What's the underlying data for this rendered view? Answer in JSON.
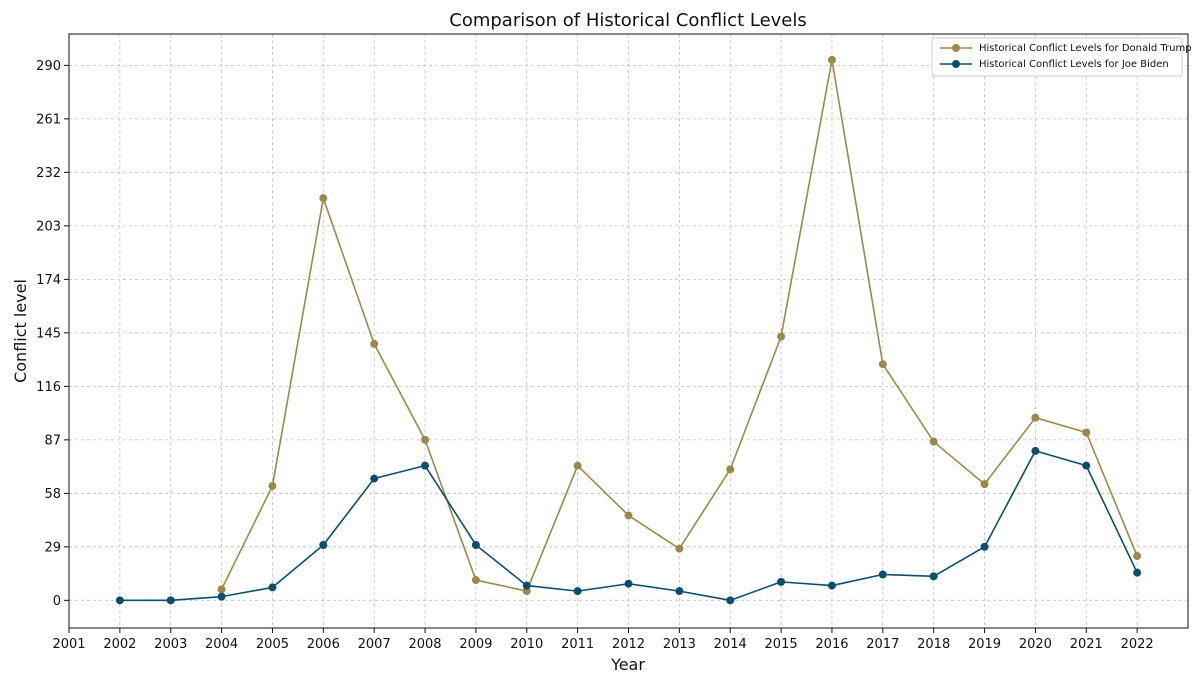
{
  "chart_data": {
    "type": "line",
    "title": "Comparison of Historical Conflict Levels",
    "xlabel": "Year",
    "ylabel": "Conflict level",
    "x_ticks": [
      2001,
      2002,
      2003,
      2004,
      2005,
      2006,
      2007,
      2008,
      2009,
      2010,
      2011,
      2012,
      2013,
      2014,
      2015,
      2016,
      2017,
      2018,
      2019,
      2020,
      2021,
      2022
    ],
    "y_ticks": [
      0,
      29,
      58,
      87,
      116,
      145,
      174,
      203,
      232,
      261,
      290
    ],
    "xlim": [
      2001,
      2023
    ],
    "ylim": [
      -15,
      307
    ],
    "grid": true,
    "legend_position": "top-right",
    "series": [
      {
        "name": "Historical Conflict Levels for Donald Trump",
        "color": "#9a8a4a",
        "x": [
          2004,
          2005,
          2006,
          2007,
          2008,
          2009,
          2010,
          2011,
          2012,
          2013,
          2014,
          2015,
          2016,
          2017,
          2018,
          2019,
          2020,
          2021,
          2022
        ],
        "values": [
          6,
          62,
          218,
          139,
          87,
          11,
          5,
          73,
          46,
          28,
          71,
          143,
          293,
          128,
          86,
          63,
          99,
          91,
          24
        ]
      },
      {
        "name": "Historical Conflict Levels for Joe Biden",
        "color": "#0b4f6c",
        "x": [
          2002,
          2003,
          2004,
          2005,
          2006,
          2007,
          2008,
          2009,
          2010,
          2011,
          2012,
          2013,
          2014,
          2015,
          2016,
          2017,
          2018,
          2019,
          2020,
          2021,
          2022
        ],
        "values": [
          0,
          0,
          2,
          7,
          30,
          66,
          73,
          30,
          8,
          5,
          9,
          5,
          0,
          10,
          8,
          14,
          13,
          29,
          81,
          73,
          15
        ]
      }
    ]
  }
}
